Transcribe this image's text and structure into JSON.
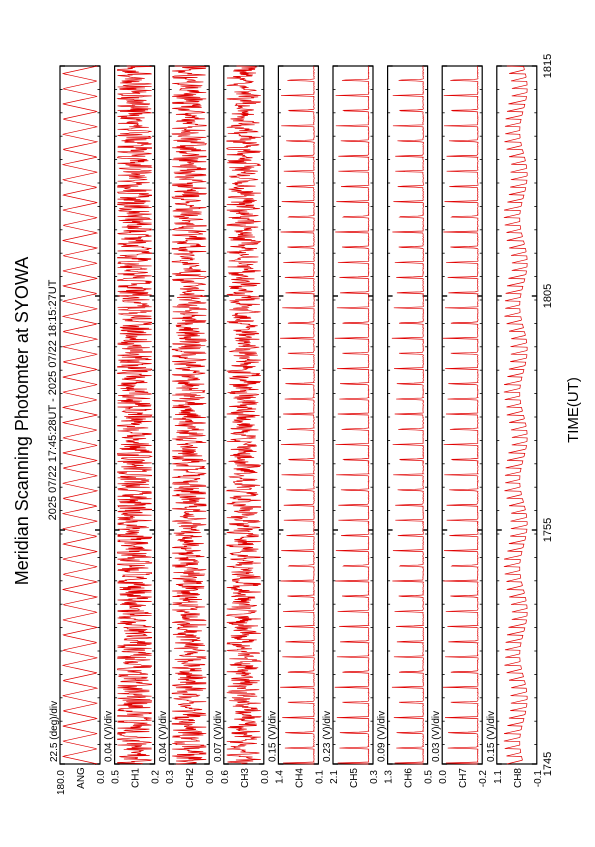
{
  "title": "Meridian Scanning Photomter at SYOWA",
  "subtitle": "2025 07/22 17:45:28UT - 2025 07/22 18:15:27UT",
  "xlabel": "TIME(UT)",
  "colors": {
    "trace": "#e00000",
    "frame": "#000000"
  },
  "chart_data": {
    "type": "line",
    "title": "Meridian Scanning Photomter at SYOWA",
    "subtitle": "2025 07/22 17:45:28UT - 2025 07/22 18:15:27UT",
    "xlabel": "TIME(UT)",
    "x_ticks": [
      "1745",
      "1755",
      "1805",
      "1815"
    ],
    "xlim": [
      "17:45:28",
      "18:15:27"
    ],
    "panels": [
      {
        "ylabel": "ANG",
        "scale": "22.5 (deg)/div",
        "top": "180.0",
        "bottom": "0.0",
        "pattern": "triangle",
        "cycles": 46,
        "amp": 0.94
      },
      {
        "ylabel": "CH1",
        "scale": "0.04 (V)/div",
        "top": "0.5",
        "bottom": "0.2",
        "pattern": "noise",
        "cycles": 120,
        "amp": 0.55
      },
      {
        "ylabel": "CH2",
        "scale": "0.04 (V)/div",
        "top": "0.3",
        "bottom": "0.0",
        "pattern": "noise",
        "cycles": 110,
        "amp": 0.45
      },
      {
        "ylabel": "CH3",
        "scale": "0.07 (V)/div",
        "top": "0.6",
        "bottom": "0.0",
        "pattern": "noise",
        "cycles": 100,
        "amp": 0.4
      },
      {
        "ylabel": "CH4",
        "scale": "0.15 (V)/div",
        "top": "1.4",
        "bottom": "0.1",
        "pattern": "spike",
        "cycles": 46,
        "amp": 0.92
      },
      {
        "ylabel": "CH5",
        "scale": "0.23 (V)/div",
        "top": "2.1",
        "bottom": "0.3",
        "pattern": "spike",
        "cycles": 46,
        "amp": 0.92
      },
      {
        "ylabel": "CH6",
        "scale": "0.09 (V)/div",
        "top": "1.3",
        "bottom": "0.5",
        "pattern": "spike",
        "cycles": 46,
        "amp": 0.85
      },
      {
        "ylabel": "CH7",
        "scale": "0.03 (V)/div",
        "top": "0.0",
        "bottom": "-0.2",
        "pattern": "spike",
        "cycles": 46,
        "amp": 0.95
      },
      {
        "ylabel": "CH8",
        "scale": "0.15 (V)/div",
        "top": "1.1",
        "bottom": "-0.1",
        "pattern": "comb",
        "cycles": 92,
        "amp": 0.75
      }
    ]
  }
}
